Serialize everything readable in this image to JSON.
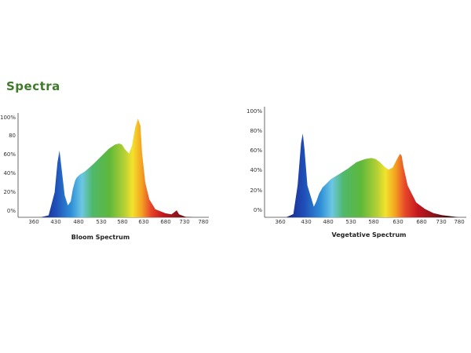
{
  "page": {
    "title": "Spectra"
  },
  "chart_data": [
    {
      "type": "area",
      "title": "Bloom Spectrum",
      "xlabel": "",
      "ylabel": "",
      "xlim": [
        330,
        790
      ],
      "ylim": [
        0,
        100
      ],
      "x_ticks": [
        "360",
        "430",
        "480",
        "530",
        "580",
        "630",
        "680",
        "730",
        "780"
      ],
      "y_ticks": [
        "100%",
        "80",
        "60%",
        "40%",
        "20%",
        "0%"
      ],
      "color_gradient": "wavelength (violet-blue to deep red)",
      "x": [
        340,
        380,
        400,
        415,
        422,
        427,
        432,
        440,
        448,
        455,
        460,
        466,
        470,
        478,
        490,
        510,
        530,
        550,
        565,
        575,
        582,
        590,
        600,
        607,
        615,
        622,
        628,
        632,
        640,
        650,
        665,
        690,
        705,
        715,
        718,
        724,
        740,
        760
      ],
      "values": [
        0,
        0,
        2,
        25,
        55,
        67,
        50,
        22,
        12,
        16,
        28,
        37,
        40,
        43,
        46,
        53,
        61,
        69,
        73,
        74,
        73,
        68,
        64,
        72,
        90,
        99,
        92,
        65,
        35,
        18,
        8,
        4,
        3,
        6,
        7,
        3,
        0.5,
        0
      ]
    },
    {
      "type": "area",
      "title": "Vegetative Spectrum",
      "xlabel": "",
      "ylabel": "",
      "xlim": [
        330,
        790
      ],
      "ylim": [
        0,
        100
      ],
      "x_ticks": [
        "360",
        "430",
        "480",
        "530",
        "580",
        "630",
        "680",
        "730",
        "780"
      ],
      "y_ticks": [
        "100%",
        "80%",
        "60%",
        "40%",
        "20%",
        "0%"
      ],
      "color_gradient": "wavelength (violet-blue to deep red)",
      "x": [
        340,
        375,
        392,
        402,
        410,
        414,
        418,
        425,
        440,
        446,
        452,
        460,
        480,
        500,
        520,
        540,
        560,
        575,
        585,
        595,
        605,
        615,
        625,
        635,
        642,
        646,
        650,
        660,
        680,
        700,
        720,
        740,
        760,
        780
      ],
      "values": [
        0,
        0,
        3,
        30,
        70,
        79,
        65,
        30,
        10,
        15,
        22,
        28,
        36,
        41,
        46,
        52,
        55,
        56,
        55,
        52,
        48,
        45,
        47,
        55,
        60,
        58,
        48,
        30,
        14,
        8,
        4,
        2,
        1,
        0
      ]
    }
  ]
}
